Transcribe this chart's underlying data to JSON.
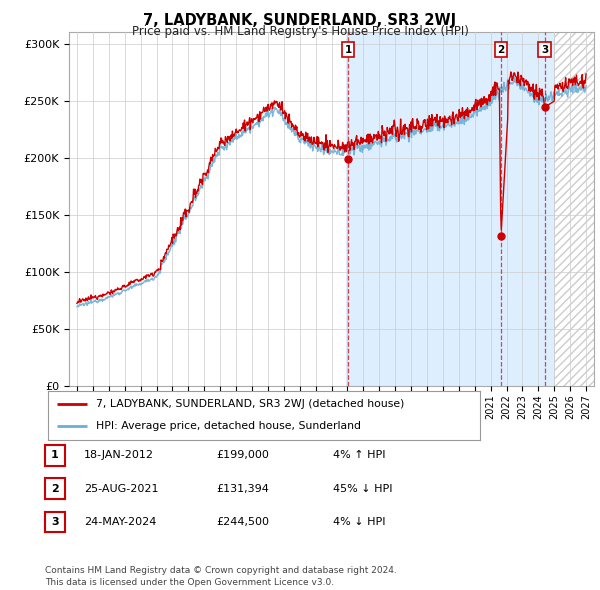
{
  "title": "7, LADYBANK, SUNDERLAND, SR3 2WJ",
  "subtitle": "Price paid vs. HM Land Registry's House Price Index (HPI)",
  "ytick_vals": [
    0,
    50000,
    100000,
    150000,
    200000,
    250000,
    300000
  ],
  "ylim": [
    0,
    310000
  ],
  "xlim_start": 1994.5,
  "xlim_end": 2027.5,
  "hpi_color": "#6baed6",
  "price_color": "#cc0000",
  "background_color": "#ffffff",
  "plot_bg": "#ffffff",
  "shaded_bg": "#ddeeff",
  "grid_color": "#cccccc",
  "hatch_color": "#cccccc",
  "transactions": [
    {
      "date_num": 2012.05,
      "price": 199000,
      "label": "1"
    },
    {
      "date_num": 2021.65,
      "price": 131394,
      "label": "2"
    },
    {
      "date_num": 2024.39,
      "price": 244500,
      "label": "3"
    }
  ],
  "shade_start": 2011.9,
  "shade_end": 2025.0,
  "hatch_start": 2025.0,
  "legend_label_red": "7, LADYBANK, SUNDERLAND, SR3 2WJ (detached house)",
  "legend_label_blue": "HPI: Average price, detached house, Sunderland",
  "table_rows": [
    {
      "num": "1",
      "date": "18-JAN-2012",
      "price": "£199,000",
      "pct": "4%",
      "dir": "↑",
      "ref": "HPI"
    },
    {
      "num": "2",
      "date": "25-AUG-2021",
      "price": "£131,394",
      "pct": "45%",
      "dir": "↓",
      "ref": "HPI"
    },
    {
      "num": "3",
      "date": "24-MAY-2024",
      "price": "£244,500",
      "pct": "4%",
      "dir": "↓",
      "ref": "HPI"
    }
  ],
  "footer": "Contains HM Land Registry data © Crown copyright and database right 2024.\nThis data is licensed under the Open Government Licence v3.0.",
  "xtick_years": [
    1995,
    1996,
    1997,
    1998,
    1999,
    2000,
    2001,
    2002,
    2003,
    2004,
    2005,
    2006,
    2007,
    2008,
    2009,
    2010,
    2011,
    2012,
    2013,
    2014,
    2015,
    2016,
    2017,
    2018,
    2019,
    2020,
    2021,
    2022,
    2023,
    2024,
    2025,
    2026,
    2027
  ]
}
